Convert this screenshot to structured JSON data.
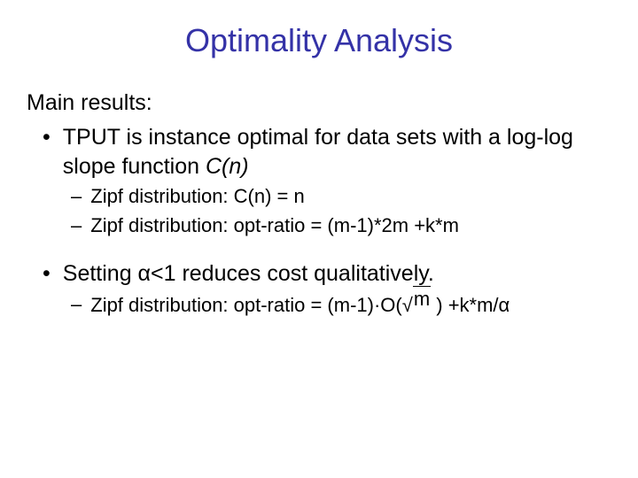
{
  "title": {
    "text": "Optimality Analysis",
    "color": "#3432a7",
    "fontsize": 36
  },
  "main_heading": "Main results:",
  "bullets": [
    {
      "text_before": "TPUT is instance optimal for data sets with a log-log slope function ",
      "italic_part": "C(n)",
      "sub": [
        "Zipf distribution:  C(n) = n",
        "Zipf distribution:  opt-ratio = (m-1)*2m +k*m"
      ]
    },
    {
      "text_before": "Setting α<1 reduces cost qualitatively.",
      "italic_part": "",
      "sub": [
        "Zipf distribution:  opt-ratio = (m-1)·O(√m ) +k*m/α"
      ]
    }
  ],
  "colors": {
    "background": "#ffffff",
    "body_text": "#000000"
  }
}
